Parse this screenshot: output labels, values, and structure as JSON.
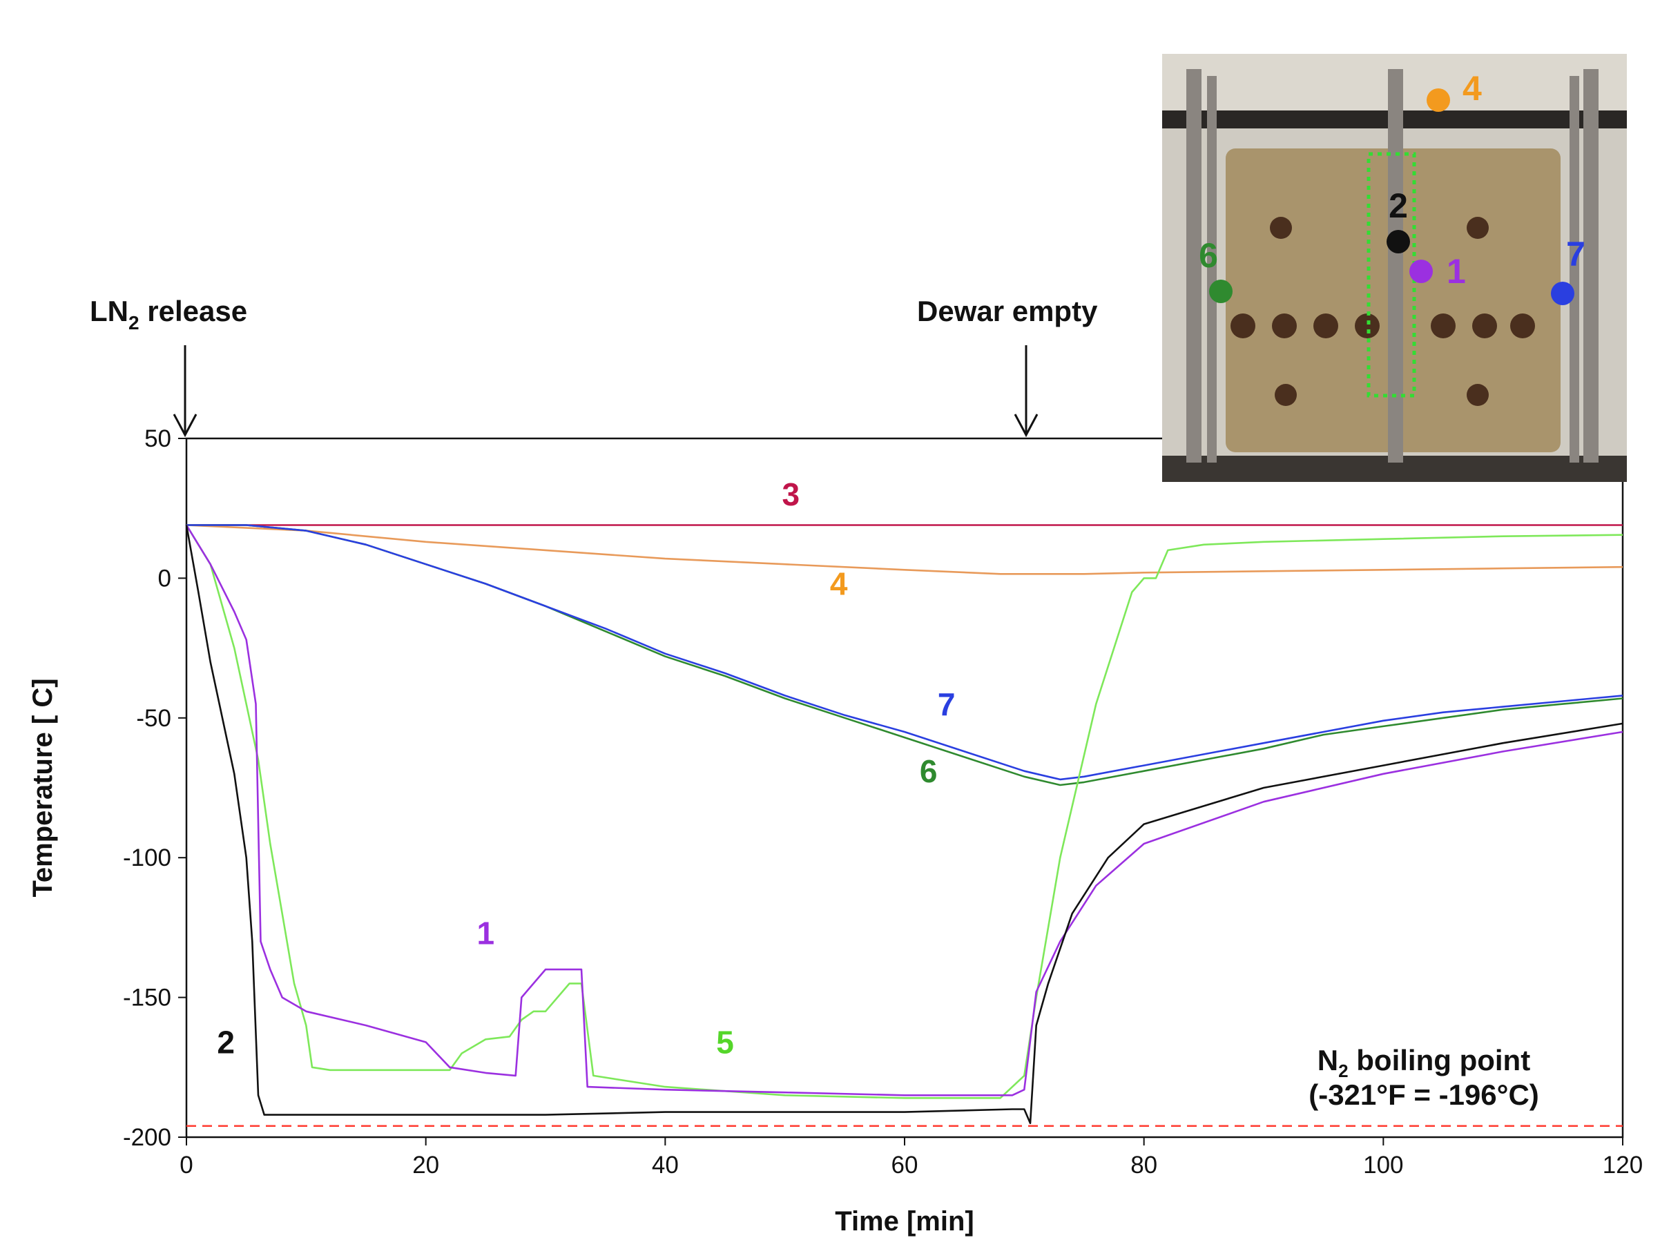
{
  "colors": {
    "s1": "#9b30e0",
    "s2": "#111111",
    "s3": "#c0154a",
    "s4": "#e89a5a",
    "s4_label": "#f39a1e",
    "s5": "#7ee85a",
    "s5_label": "#55d62a",
    "s6": "#2f8a2f",
    "s7": "#2a3fe0",
    "boiling": "#ff3b30",
    "frame_green": "#33dd33"
  },
  "annotations": {
    "ln2_release_pre": "LN",
    "ln2_release_sub": "2",
    "ln2_release_post": " release",
    "dewar_empty": "Dewar empty",
    "boiling_line1_pre": "N",
    "boiling_line1_sub": "2",
    "boiling_line1_post": " boiling point",
    "boiling_line2": "(-321°F = -196°C)"
  },
  "inset": {
    "points": [
      {
        "label": "1",
        "color": "#9b30e0"
      },
      {
        "label": "2",
        "color": "#111111"
      },
      {
        "label": "4",
        "color": "#f39a1e"
      },
      {
        "label": "6",
        "color": "#2f8a2f"
      },
      {
        "label": "7",
        "color": "#2a3fe0"
      }
    ]
  },
  "chart_data": {
    "type": "line",
    "xlabel": "Time [min]",
    "ylabel": "Temperature [ C]",
    "xlim": [
      0,
      120
    ],
    "ylim": [
      -200,
      50
    ],
    "x_ticks": [
      "0",
      "20",
      "40",
      "60",
      "80",
      "100",
      "120"
    ],
    "y_ticks": [
      "50",
      "0",
      "-50",
      "-100",
      "-150",
      "-200"
    ],
    "reference_line": {
      "y": -196,
      "style": "dashed"
    },
    "series": [
      {
        "name": "1",
        "color": "#9b30e0",
        "x": [
          0,
          2,
          4,
          5,
          5.8,
          6.2,
          7,
          8,
          10,
          15,
          20,
          22,
          25,
          27.5,
          28,
          30,
          33,
          33.5,
          40,
          50,
          60,
          69,
          70,
          71,
          73,
          76,
          80,
          90,
          100,
          110,
          120
        ],
        "y": [
          19,
          5,
          -12,
          -22,
          -45,
          -130,
          -140,
          -150,
          -155,
          -160,
          -166,
          -175,
          -177,
          -178,
          -150,
          -140,
          -140,
          -182,
          -183,
          -184,
          -185,
          -185,
          -183,
          -148,
          -130,
          -110,
          -95,
          -80,
          -70,
          -62,
          -55
        ]
      },
      {
        "name": "2",
        "color": "#111111",
        "x": [
          0,
          1,
          2,
          3,
          4,
          5,
          5.5,
          6,
          6.5,
          8,
          10,
          20,
          28,
          30,
          40,
          50,
          60,
          69,
          70,
          70.5,
          71,
          72,
          74,
          77,
          80,
          90,
          100,
          110,
          120
        ],
        "y": [
          19,
          -5,
          -30,
          -50,
          -70,
          -100,
          -130,
          -185,
          -192,
          -192,
          -192,
          -192,
          -192,
          -192,
          -191,
          -191,
          -191,
          -190,
          -190,
          -195,
          -160,
          -145,
          -120,
          -100,
          -88,
          -75,
          -67,
          -59,
          -52
        ]
      },
      {
        "name": "3",
        "color": "#c0154a",
        "x": [
          0,
          30,
          60,
          90,
          120
        ],
        "y": [
          19,
          19,
          19,
          19,
          19
        ]
      },
      {
        "name": "4",
        "color": "#e89a5a",
        "x": [
          0,
          10,
          20,
          30,
          40,
          50,
          60,
          68,
          75,
          80,
          90,
          100,
          110,
          120
        ],
        "y": [
          19,
          17,
          13,
          10,
          7,
          5,
          3,
          1.5,
          1.5,
          2,
          2.5,
          3,
          3.5,
          4
        ]
      },
      {
        "name": "5",
        "color": "#7ee85a",
        "x": [
          0,
          1,
          2,
          3,
          4,
          5,
          6,
          7,
          8,
          9,
          10,
          10.5,
          12,
          15,
          20,
          22,
          23,
          25,
          27,
          28,
          29,
          30,
          32,
          33,
          34,
          40,
          50,
          60,
          68,
          70,
          71,
          73,
          76,
          79,
          80,
          81,
          82,
          85,
          90,
          100,
          110,
          120
        ],
        "y": [
          19,
          12,
          5,
          -10,
          -25,
          -45,
          -65,
          -95,
          -120,
          -145,
          -160,
          -175,
          -176,
          -176,
          -176,
          -176,
          -170,
          -165,
          -164,
          -158,
          -155,
          -155,
          -145,
          -145,
          -178,
          -182,
          -185,
          -186,
          -186,
          -178,
          -150,
          -100,
          -45,
          -5,
          0,
          0,
          10,
          12,
          13,
          14,
          15,
          15.5
        ]
      },
      {
        "name": "6",
        "color": "#2f8a2f",
        "x": [
          0,
          5,
          10,
          15,
          20,
          25,
          30,
          35,
          40,
          45,
          50,
          55,
          60,
          65,
          70,
          73,
          75,
          80,
          85,
          90,
          95,
          100,
          105,
          110,
          115,
          120
        ],
        "y": [
          19,
          19,
          17,
          12,
          5,
          -2,
          -10,
          -19,
          -28,
          -35,
          -43,
          -50,
          -57,
          -64,
          -71,
          -74,
          -73,
          -69,
          -65,
          -61,
          -56,
          -53,
          -50,
          -47,
          -45,
          -43
        ]
      },
      {
        "name": "7",
        "color": "#2a3fe0",
        "x": [
          0,
          5,
          10,
          15,
          20,
          25,
          30,
          35,
          40,
          45,
          50,
          55,
          60,
          65,
          70,
          73,
          75,
          80,
          85,
          90,
          95,
          100,
          105,
          110,
          115,
          120
        ],
        "y": [
          19,
          19,
          17,
          12,
          5,
          -2,
          -10,
          -18,
          -27,
          -34,
          -42,
          -49,
          -55,
          -62,
          -69,
          -72,
          -71,
          -67,
          -63,
          -59,
          -55,
          -51,
          -48,
          -46,
          -44,
          -42
        ]
      }
    ],
    "series_labels": [
      {
        "label": "1",
        "x": 25,
        "y": -131
      },
      {
        "label": "2",
        "x": 3.3,
        "y": -170
      },
      {
        "label": "3",
        "x": 50.5,
        "y": 26
      },
      {
        "label": "4",
        "x": 54.5,
        "y": -6
      },
      {
        "label": "5",
        "x": 45,
        "y": -170
      },
      {
        "label": "6",
        "x": 62,
        "y": -73
      },
      {
        "label": "7",
        "x": 63.5,
        "y": -49
      }
    ]
  }
}
